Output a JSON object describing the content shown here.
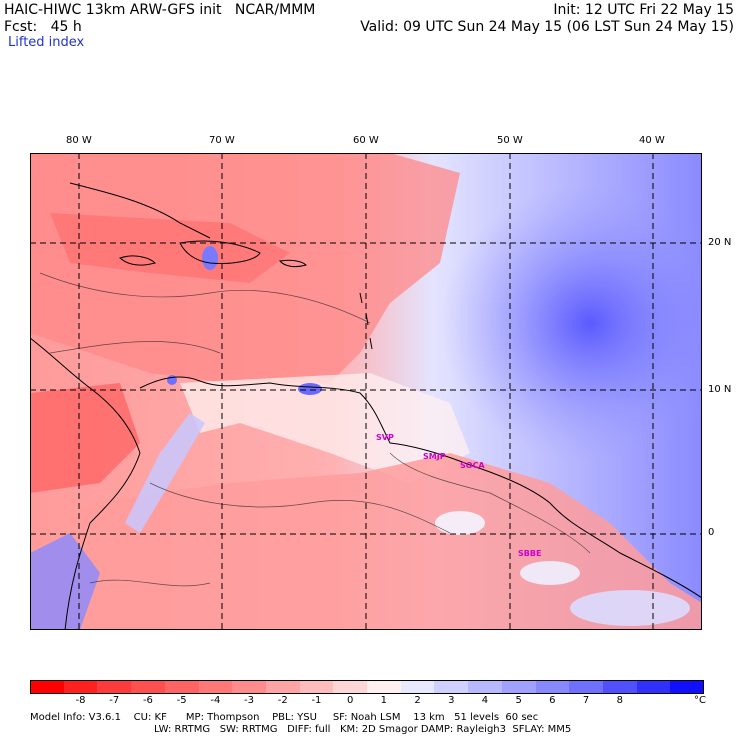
{
  "header": {
    "title": "HAIC-HIWC 13km ARW-GFS init   NCAR/MMM",
    "fcst": "Fcst:   45 h",
    "init": "Init: 12 UTC Fri 22 May 15",
    "valid": "Valid: 09 UTC Sun 24 May 15 (06 LST Sun 24 May 15)",
    "field": "Lifted index"
  },
  "map": {
    "lon_labels": [
      "80 W",
      "70 W",
      "60 W",
      "50 W",
      "40 W"
    ],
    "lat_labels": [
      "20 N",
      "10 N",
      "0"
    ],
    "stations": [
      "SVP",
      "SMJP",
      "SOCA",
      "SBBE"
    ]
  },
  "colorbar": {
    "colors": [
      "#ff0000",
      "#ff2020",
      "#ff3a3a",
      "#ff5050",
      "#ff6464",
      "#ff7878",
      "#ff8c8c",
      "#ffa4a4",
      "#ffbcbc",
      "#ffd6d6",
      "#fff0f0",
      "#e8e8ff",
      "#d0d0ff",
      "#b8b8ff",
      "#a0a0ff",
      "#8888ff",
      "#7070ff",
      "#5050ff",
      "#3030ff",
      "#1010ff"
    ],
    "ticks": [
      "-8",
      "-7",
      "-6",
      "-5",
      "-4",
      "-3",
      "-2",
      "-1",
      "0",
      "1",
      "2",
      "3",
      "4",
      "5",
      "6",
      "7",
      "8"
    ],
    "unit": "°C"
  },
  "model_info": {
    "line1": "Model Info: V3.6.1    CU: KF      MP: Thompson    PBL: YSU     SF: Noah LSM    13 km   51 levels  60 sec",
    "line2": "LW: RRTMG   SW: RRTMG   DIFF: full   KM: 2D Smagor DAMP: Rayleigh3  SFLAY: MM5"
  }
}
